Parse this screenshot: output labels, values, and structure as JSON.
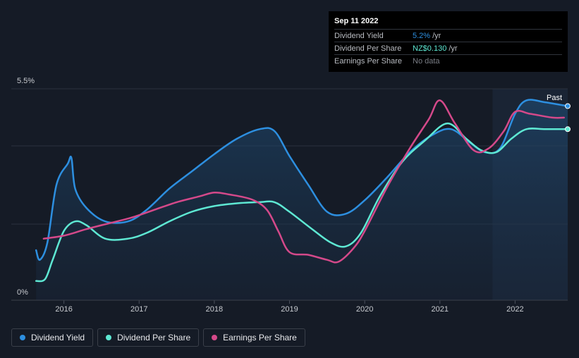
{
  "tooltip": {
    "date": "Sep 11 2022",
    "rows": [
      {
        "label": "Dividend Yield",
        "value": "5.2%",
        "unit": "/yr",
        "color": "#2d8fe0"
      },
      {
        "label": "Dividend Per Share",
        "value": "NZ$0.130",
        "unit": "/yr",
        "color": "#5ee8d3"
      },
      {
        "label": "Earnings Per Share",
        "value": "No data",
        "unit": "",
        "color": "#7a7e86"
      }
    ]
  },
  "legend": [
    {
      "label": "Dividend Yield",
      "color": "#2d8fe0"
    },
    {
      "label": "Dividend Per Share",
      "color": "#5ee8d3"
    },
    {
      "label": "Earnings Per Share",
      "color": "#d4498a"
    }
  ],
  "chart_data": {
    "type": "line",
    "title": "",
    "xlabel": "",
    "ylabel": "",
    "y_tick_labels": [
      "5.5%",
      "0%"
    ],
    "ylim": [
      0,
      5.5
    ],
    "xlim": [
      2015.6,
      2022.7
    ],
    "x_ticks": [
      2016,
      2017,
      2018,
      2019,
      2020,
      2021,
      2022
    ],
    "x_tick_labels": [
      "2016",
      "2017",
      "2018",
      "2019",
      "2020",
      "2021",
      "2022"
    ],
    "past_label": "Past",
    "past_region_start": 2021.7,
    "series": [
      {
        "name": "Dividend Yield",
        "color": "#2d8fe0",
        "filled": true,
        "points": [
          [
            2015.63,
            1.3
          ],
          [
            2015.68,
            1.05
          ],
          [
            2015.78,
            1.5
          ],
          [
            2015.9,
            3.0
          ],
          [
            2016.05,
            3.55
          ],
          [
            2016.1,
            3.7
          ],
          [
            2016.15,
            2.9
          ],
          [
            2016.3,
            2.4
          ],
          [
            2016.55,
            2.05
          ],
          [
            2016.85,
            2.05
          ],
          [
            2017.1,
            2.35
          ],
          [
            2017.4,
            2.9
          ],
          [
            2017.7,
            3.35
          ],
          [
            2018.0,
            3.8
          ],
          [
            2018.3,
            4.2
          ],
          [
            2018.6,
            4.45
          ],
          [
            2018.8,
            4.4
          ],
          [
            2019.0,
            3.75
          ],
          [
            2019.25,
            3.0
          ],
          [
            2019.5,
            2.3
          ],
          [
            2019.75,
            2.25
          ],
          [
            2020.0,
            2.6
          ],
          [
            2020.3,
            3.2
          ],
          [
            2020.6,
            3.85
          ],
          [
            2020.9,
            4.3
          ],
          [
            2021.15,
            4.45
          ],
          [
            2021.4,
            4.1
          ],
          [
            2021.6,
            3.85
          ],
          [
            2021.8,
            3.95
          ],
          [
            2022.0,
            4.85
          ],
          [
            2022.15,
            5.2
          ],
          [
            2022.4,
            5.15
          ],
          [
            2022.7,
            5.05
          ]
        ]
      },
      {
        "name": "Dividend Per Share",
        "color": "#5ee8d3",
        "filled": false,
        "points": [
          [
            2015.63,
            0.5
          ],
          [
            2015.75,
            0.55
          ],
          [
            2015.85,
            1.05
          ],
          [
            2016.0,
            1.8
          ],
          [
            2016.15,
            2.05
          ],
          [
            2016.3,
            1.95
          ],
          [
            2016.55,
            1.6
          ],
          [
            2016.85,
            1.6
          ],
          [
            2017.1,
            1.75
          ],
          [
            2017.4,
            2.05
          ],
          [
            2017.7,
            2.3
          ],
          [
            2018.0,
            2.45
          ],
          [
            2018.3,
            2.52
          ],
          [
            2018.6,
            2.55
          ],
          [
            2018.8,
            2.55
          ],
          [
            2019.0,
            2.3
          ],
          [
            2019.3,
            1.85
          ],
          [
            2019.55,
            1.5
          ],
          [
            2019.75,
            1.4
          ],
          [
            2019.95,
            1.75
          ],
          [
            2020.2,
            2.7
          ],
          [
            2020.5,
            3.6
          ],
          [
            2020.8,
            4.15
          ],
          [
            2021.1,
            4.6
          ],
          [
            2021.35,
            4.2
          ],
          [
            2021.55,
            3.9
          ],
          [
            2021.75,
            3.85
          ],
          [
            2021.95,
            4.2
          ],
          [
            2022.15,
            4.45
          ],
          [
            2022.4,
            4.45
          ],
          [
            2022.7,
            4.45
          ]
        ]
      },
      {
        "name": "Earnings Per Share",
        "color": "#d4498a",
        "filled": false,
        "points": [
          [
            2015.73,
            1.6
          ],
          [
            2016.0,
            1.68
          ],
          [
            2016.3,
            1.85
          ],
          [
            2016.6,
            2.0
          ],
          [
            2016.9,
            2.15
          ],
          [
            2017.2,
            2.35
          ],
          [
            2017.5,
            2.55
          ],
          [
            2017.8,
            2.7
          ],
          [
            2018.0,
            2.8
          ],
          [
            2018.2,
            2.75
          ],
          [
            2018.5,
            2.62
          ],
          [
            2018.7,
            2.35
          ],
          [
            2018.85,
            1.8
          ],
          [
            2019.0,
            1.25
          ],
          [
            2019.25,
            1.18
          ],
          [
            2019.5,
            1.05
          ],
          [
            2019.65,
            1.0
          ],
          [
            2019.85,
            1.35
          ],
          [
            2020.0,
            1.8
          ],
          [
            2020.3,
            2.95
          ],
          [
            2020.6,
            3.95
          ],
          [
            2020.85,
            4.7
          ],
          [
            2021.0,
            5.2
          ],
          [
            2021.2,
            4.6
          ],
          [
            2021.45,
            3.9
          ],
          [
            2021.65,
            3.95
          ],
          [
            2021.85,
            4.4
          ],
          [
            2022.0,
            4.9
          ],
          [
            2022.2,
            4.85
          ],
          [
            2022.5,
            4.75
          ],
          [
            2022.65,
            4.75
          ]
        ]
      }
    ]
  }
}
